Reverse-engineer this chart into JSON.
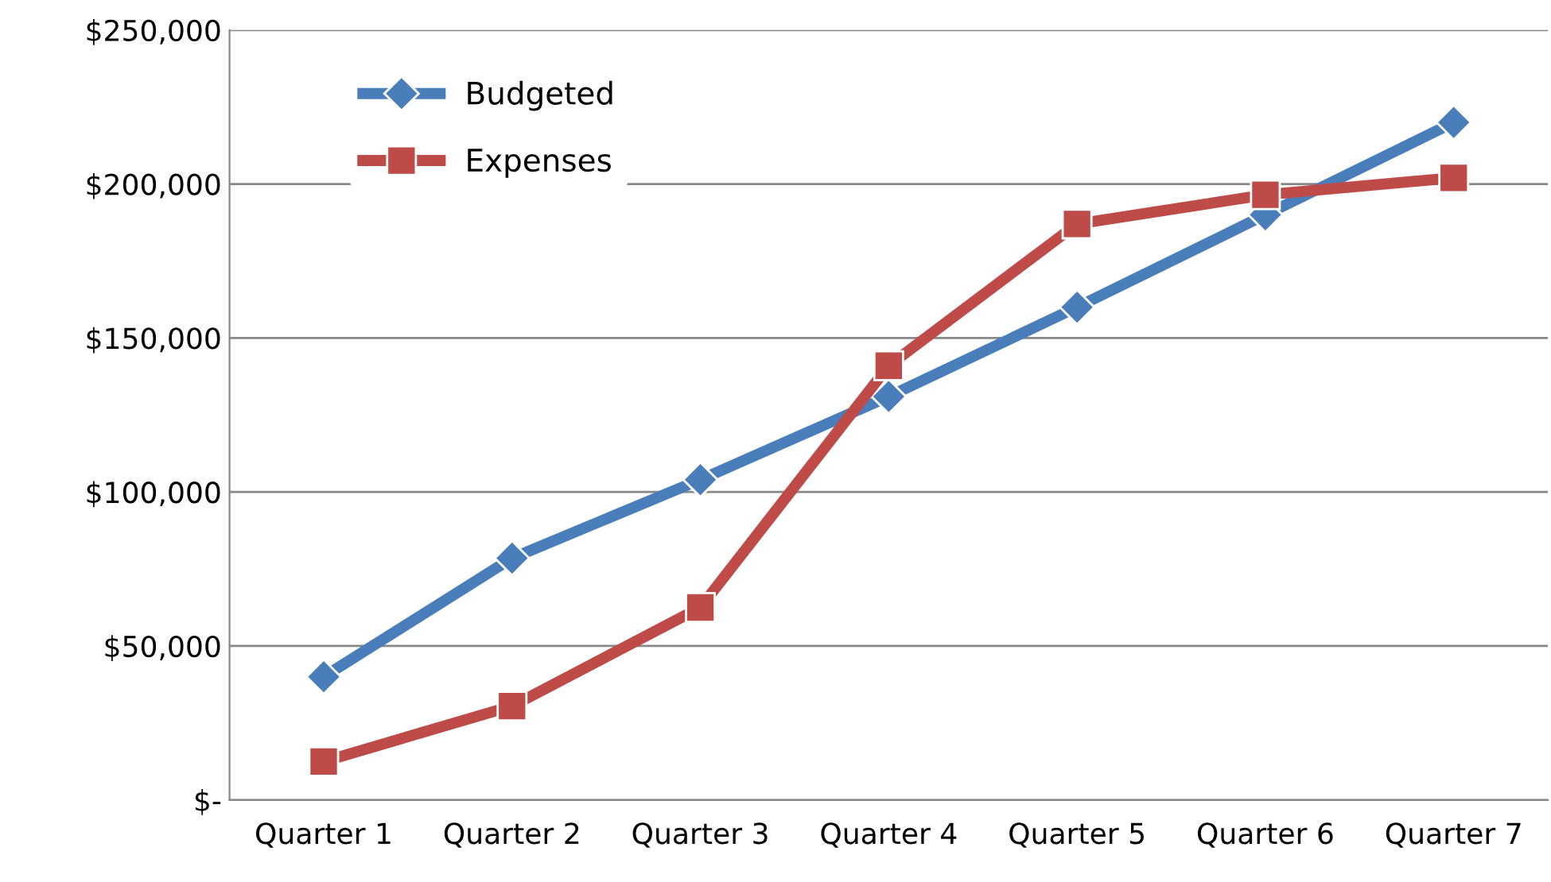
{
  "chart_data": {
    "type": "line",
    "categories": [
      "Quarter 1",
      "Quarter 2",
      "Quarter 3",
      "Quarter 4",
      "Quarter 5",
      "Quarter 6",
      "Quarter 7"
    ],
    "series": [
      {
        "name": "Budgeted",
        "color": "#4a7ebb",
        "marker": "diamond",
        "values": [
          40000,
          78500,
          104000,
          131000,
          160000,
          190000,
          220000
        ]
      },
      {
        "name": "Expenses",
        "color": "#be4b48",
        "marker": "square",
        "values": [
          12500,
          30500,
          62500,
          141000,
          187000,
          196500,
          202000
        ]
      }
    ],
    "ylim": [
      0,
      250000
    ],
    "yticks": [
      {
        "value": 0,
        "label": "$-"
      },
      {
        "value": 50000,
        "label": "$50,000"
      },
      {
        "value": 100000,
        "label": "$100,000"
      },
      {
        "value": 150000,
        "label": "$150,000"
      },
      {
        "value": 200000,
        "label": "$200,000"
      },
      {
        "value": 250000,
        "label": "$250,000"
      }
    ],
    "grid": "y",
    "legend": "top left",
    "line_style": "solid"
  }
}
